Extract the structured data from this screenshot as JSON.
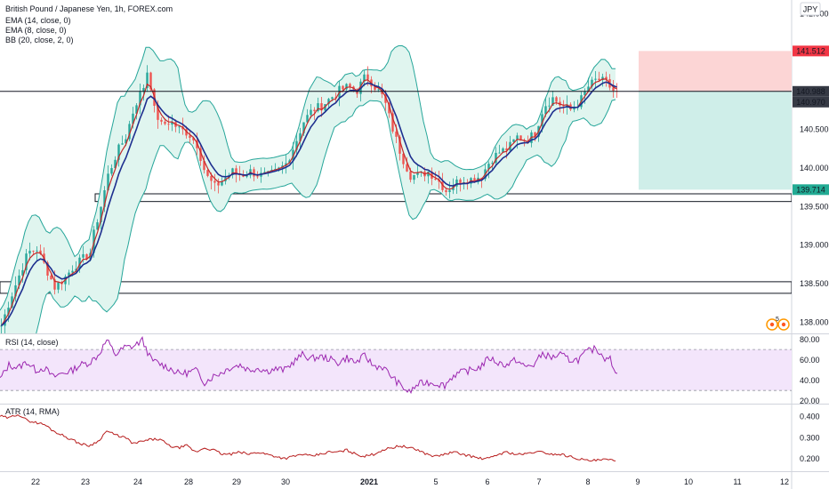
{
  "header": {
    "title": "British Pound / Japanese Yen, 1h, FOREX.com",
    "indicators": [
      "EMA (14, close, 0)",
      "EMA (8, close, 0)",
      "BB (20, close, 2, 0)"
    ],
    "currency": "JPY"
  },
  "colors": {
    "candle_up": "#26a69a",
    "candle_down": "#ef5350",
    "ema14": "#1e2f8f",
    "ema8": "#c62828",
    "bb": "#26a69a",
    "bb_fill": "#e0f5ef",
    "rsi": "#9c27b0",
    "rsi_band": "#f3e5fb",
    "atr": "#b71c1c",
    "short_stop_zone": "#fcd5d5",
    "short_target_zone": "#cfeee9",
    "price_tag_dark": "#363a45",
    "price_tag_red": "#f23645",
    "price_tag_teal": "#22ab94"
  },
  "chart_data": [
    {
      "type": "candlestick",
      "panel": "price",
      "title": "British Pound / Japanese Yen, 1h, FOREX.com",
      "ylim": [
        137.85,
        142.15
      ],
      "y_ticks": [
        "142.000",
        "141.500",
        "141.000",
        "140.500",
        "140.000",
        "139.500",
        "139.000",
        "138.500",
        "138.000"
      ],
      "x_labels": [
        "22",
        "23",
        "24",
        "28",
        "29",
        "30",
        "2021",
        "5",
        "6",
        "7",
        "8",
        "9",
        "10",
        "11",
        "12"
      ],
      "close_points": [
        [
          0,
          137.95
        ],
        [
          10,
          138.3
        ],
        [
          20,
          138.6
        ],
        [
          30,
          138.9
        ],
        [
          40,
          138.95
        ],
        [
          50,
          138.7
        ],
        [
          60,
          138.45
        ],
        [
          70,
          138.55
        ],
        [
          80,
          138.7
        ],
        [
          90,
          138.8
        ],
        [
          100,
          138.9
        ],
        [
          105,
          139.2
        ],
        [
          112,
          139.5
        ],
        [
          120,
          139.9
        ],
        [
          130,
          140.2
        ],
        [
          140,
          140.4
        ],
        [
          150,
          140.8
        ],
        [
          160,
          141.05
        ],
        [
          165,
          141.3
        ],
        [
          172,
          140.75
        ],
        [
          180,
          140.55
        ],
        [
          190,
          140.6
        ],
        [
          200,
          140.5
        ],
        [
          210,
          140.45
        ],
        [
          220,
          140.3
        ],
        [
          230,
          139.9
        ],
        [
          240,
          139.75
        ],
        [
          250,
          139.85
        ],
        [
          260,
          139.95
        ],
        [
          270,
          139.9
        ],
        [
          280,
          139.95
        ],
        [
          290,
          139.9
        ],
        [
          300,
          139.9
        ],
        [
          310,
          139.95
        ],
        [
          320,
          140.05
        ],
        [
          330,
          140.3
        ],
        [
          340,
          140.6
        ],
        [
          350,
          140.75
        ],
        [
          360,
          140.8
        ],
        [
          370,
          140.9
        ],
        [
          380,
          141.0
        ],
        [
          390,
          141.05
        ],
        [
          400,
          141.0
        ],
        [
          410,
          141.2
        ],
        [
          420,
          141.05
        ],
        [
          430,
          140.9
        ],
        [
          440,
          140.5
        ],
        [
          450,
          140.15
        ],
        [
          460,
          139.9
        ],
        [
          470,
          139.9
        ],
        [
          480,
          139.95
        ],
        [
          490,
          139.85
        ],
        [
          500,
          139.7
        ],
        [
          510,
          139.8
        ],
        [
          520,
          139.85
        ],
        [
          530,
          139.85
        ],
        [
          540,
          139.9
        ],
        [
          550,
          140.1
        ],
        [
          560,
          140.2
        ],
        [
          570,
          140.25
        ],
        [
          580,
          140.4
        ],
        [
          590,
          140.35
        ],
        [
          600,
          140.45
        ],
        [
          610,
          140.8
        ],
        [
          620,
          140.9
        ],
        [
          630,
          140.8
        ],
        [
          640,
          140.75
        ],
        [
          650,
          140.85
        ],
        [
          660,
          141.05
        ],
        [
          670,
          141.15
        ],
        [
          680,
          141.1
        ],
        [
          690,
          140.97
        ]
      ],
      "horizontal_lines": [
        140.988
      ],
      "zones": [
        {
          "from": 139.66,
          "to": 139.56
        },
        {
          "from": 138.52,
          "to": 138.37
        }
      ],
      "position": {
        "entry": 140.988,
        "stop": 141.512,
        "target": 139.714
      },
      "price_tags": [
        {
          "value": "141.512",
          "role": "stop"
        },
        {
          "value": "140.988",
          "role": "line"
        },
        {
          "value": "140.970",
          "role": "last"
        },
        {
          "value": "139.714",
          "role": "target"
        }
      ],
      "badge": "5"
    },
    {
      "type": "line",
      "panel": "rsi",
      "title": "RSI (14, close)",
      "ylim": [
        18,
        84
      ],
      "y_ticks": [
        "80.00",
        "60.00",
        "40.00",
        "20.00"
      ],
      "band": [
        30,
        70
      ],
      "points": [
        [
          0,
          41
        ],
        [
          10,
          55
        ],
        [
          20,
          52
        ],
        [
          30,
          58
        ],
        [
          40,
          50
        ],
        [
          50,
          52
        ],
        [
          60,
          43
        ],
        [
          70,
          47
        ],
        [
          80,
          49
        ],
        [
          90,
          55
        ],
        [
          100,
          57
        ],
        [
          110,
          64
        ],
        [
          120,
          79
        ],
        [
          130,
          65
        ],
        [
          140,
          72
        ],
        [
          150,
          73
        ],
        [
          160,
          79
        ],
        [
          170,
          60
        ],
        [
          180,
          56
        ],
        [
          190,
          52
        ],
        [
          200,
          47
        ],
        [
          210,
          47
        ],
        [
          220,
          50
        ],
        [
          230,
          38
        ],
        [
          240,
          44
        ],
        [
          250,
          48
        ],
        [
          260,
          53
        ],
        [
          270,
          55
        ],
        [
          280,
          50
        ],
        [
          290,
          52
        ],
        [
          300,
          49
        ],
        [
          310,
          51
        ],
        [
          320,
          50
        ],
        [
          330,
          58
        ],
        [
          340,
          65
        ],
        [
          350,
          61
        ],
        [
          360,
          63
        ],
        [
          370,
          61
        ],
        [
          380,
          57
        ],
        [
          390,
          62
        ],
        [
          400,
          57
        ],
        [
          410,
          64
        ],
        [
          420,
          54
        ],
        [
          430,
          53
        ],
        [
          440,
          44
        ],
        [
          450,
          35
        ],
        [
          460,
          28
        ],
        [
          470,
          36
        ],
        [
          480,
          38
        ],
        [
          490,
          37
        ],
        [
          500,
          35
        ],
        [
          510,
          45
        ],
        [
          520,
          48
        ],
        [
          530,
          50
        ],
        [
          540,
          53
        ],
        [
          550,
          62
        ],
        [
          560,
          57
        ],
        [
          570,
          55
        ],
        [
          580,
          60
        ],
        [
          590,
          53
        ],
        [
          600,
          55
        ],
        [
          610,
          66
        ],
        [
          620,
          62
        ],
        [
          630,
          65
        ],
        [
          640,
          60
        ],
        [
          650,
          60
        ],
        [
          660,
          68
        ],
        [
          670,
          71
        ],
        [
          680,
          62
        ],
        [
          685,
          64
        ],
        [
          690,
          48
        ],
        [
          695,
          50
        ]
      ]
    },
    {
      "type": "line",
      "panel": "atr",
      "title": "ATR (14, RMA)",
      "ylim": [
        0.14,
        0.45
      ],
      "y_ticks": [
        "0.400",
        "0.300",
        "0.200"
      ],
      "points": [
        [
          0,
          0.4
        ],
        [
          10,
          0.39
        ],
        [
          20,
          0.41
        ],
        [
          30,
          0.38
        ],
        [
          40,
          0.37
        ],
        [
          50,
          0.36
        ],
        [
          60,
          0.33
        ],
        [
          70,
          0.31
        ],
        [
          80,
          0.29
        ],
        [
          90,
          0.27
        ],
        [
          100,
          0.26
        ],
        [
          110,
          0.28
        ],
        [
          120,
          0.33
        ],
        [
          130,
          0.31
        ],
        [
          140,
          0.3
        ],
        [
          150,
          0.27
        ],
        [
          160,
          0.28
        ],
        [
          170,
          0.29
        ],
        [
          180,
          0.29
        ],
        [
          190,
          0.26
        ],
        [
          200,
          0.25
        ],
        [
          210,
          0.26
        ],
        [
          220,
          0.23
        ],
        [
          230,
          0.25
        ],
        [
          240,
          0.24
        ],
        [
          250,
          0.22
        ],
        [
          260,
          0.22
        ],
        [
          270,
          0.23
        ],
        [
          280,
          0.22
        ],
        [
          290,
          0.23
        ],
        [
          300,
          0.22
        ],
        [
          310,
          0.21
        ],
        [
          320,
          0.2
        ],
        [
          330,
          0.21
        ],
        [
          340,
          0.22
        ],
        [
          350,
          0.21
        ],
        [
          360,
          0.22
        ],
        [
          370,
          0.23
        ],
        [
          380,
          0.23
        ],
        [
          390,
          0.24
        ],
        [
          400,
          0.22
        ],
        [
          410,
          0.21
        ],
        [
          420,
          0.22
        ],
        [
          430,
          0.24
        ],
        [
          440,
          0.25
        ],
        [
          450,
          0.26
        ],
        [
          460,
          0.25
        ],
        [
          470,
          0.24
        ],
        [
          480,
          0.22
        ],
        [
          490,
          0.21
        ],
        [
          500,
          0.22
        ],
        [
          510,
          0.23
        ],
        [
          520,
          0.22
        ],
        [
          530,
          0.21
        ],
        [
          540,
          0.2
        ],
        [
          550,
          0.2
        ],
        [
          560,
          0.22
        ],
        [
          570,
          0.23
        ],
        [
          580,
          0.22
        ],
        [
          590,
          0.22
        ],
        [
          600,
          0.23
        ],
        [
          610,
          0.23
        ],
        [
          620,
          0.22
        ],
        [
          630,
          0.22
        ],
        [
          640,
          0.21
        ],
        [
          650,
          0.2
        ],
        [
          660,
          0.19
        ],
        [
          670,
          0.19
        ],
        [
          680,
          0.195
        ],
        [
          690,
          0.19
        ]
      ]
    }
  ]
}
